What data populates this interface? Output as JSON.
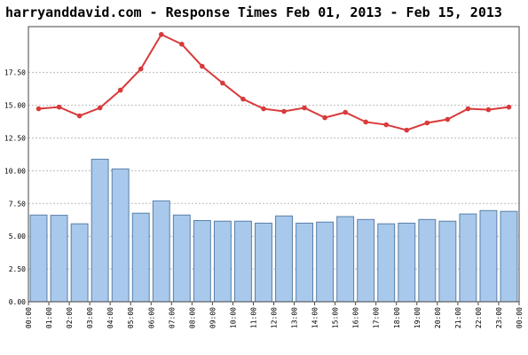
{
  "chart_data": {
    "type": "bar-line",
    "title": "harryanddavid.com - Response Times Feb 01, 2013 - Feb 15, 2013",
    "xlim": [
      0,
      24
    ],
    "xticks": [
      {
        "value": 0,
        "label": "00:00"
      },
      {
        "value": 1,
        "label": "01:00"
      },
      {
        "value": 2,
        "label": "02:00"
      },
      {
        "value": 3,
        "label": "03:00"
      },
      {
        "value": 4,
        "label": "04:00"
      },
      {
        "value": 5,
        "label": "05:00"
      },
      {
        "value": 6,
        "label": "06:00"
      },
      {
        "value": 7,
        "label": "07:00"
      },
      {
        "value": 8,
        "label": "08:00"
      },
      {
        "value": 9,
        "label": "09:00"
      },
      {
        "value": 10,
        "label": "10:00"
      },
      {
        "value": 11,
        "label": "11:00"
      },
      {
        "value": 12,
        "label": "12:00"
      },
      {
        "value": 13,
        "label": "13:00"
      },
      {
        "value": 14,
        "label": "14:00"
      },
      {
        "value": 15,
        "label": "15:00"
      },
      {
        "value": 16,
        "label": "16:00"
      },
      {
        "value": 17,
        "label": "17:00"
      },
      {
        "value": 18,
        "label": "18:00"
      },
      {
        "value": 19,
        "label": "19:00"
      },
      {
        "value": 20,
        "label": "20:00"
      },
      {
        "value": 21,
        "label": "21:00"
      },
      {
        "value": 22,
        "label": "22:00"
      },
      {
        "value": 23,
        "label": "23:00"
      },
      {
        "value": 24,
        "label": "00:00"
      }
    ],
    "ylim": [
      0,
      21
    ],
    "yticks": [
      {
        "value": 0,
        "label": "0.00"
      },
      {
        "value": 2.5,
        "label": "2.50"
      },
      {
        "value": 5,
        "label": "5.00"
      },
      {
        "value": 7.5,
        "label": "7.50"
      },
      {
        "value": 10,
        "label": "10.00"
      },
      {
        "value": 12.5,
        "label": "12.50"
      },
      {
        "value": 15,
        "label": "15.00"
      },
      {
        "value": 17.5,
        "label": "17.50"
      }
    ],
    "grid": true,
    "x": [
      0.5,
      1.5,
      2.5,
      3.5,
      4.5,
      5.5,
      6.5,
      7.5,
      8.5,
      9.5,
      10.5,
      11.5,
      12.5,
      13.5,
      14.5,
      15.5,
      16.5,
      17.5,
      18.5,
      19.5,
      20.5,
      21.5,
      22.5,
      23.5
    ],
    "series": [
      {
        "type": "bar",
        "color": "#a9c9ec",
        "values": [
          6.62,
          6.6,
          5.95,
          10.88,
          10.14,
          6.76,
          7.7,
          6.62,
          6.2,
          6.15,
          6.15,
          6.0,
          6.55,
          6.0,
          6.08,
          6.5,
          6.28,
          5.95,
          6.0,
          6.28,
          6.15,
          6.7,
          6.96,
          6.9
        ]
      },
      {
        "type": "line",
        "color": "#d93a3a",
        "values": [
          14.73,
          14.86,
          14.19,
          14.8,
          16.15,
          17.77,
          20.4,
          19.66,
          17.97,
          16.69,
          15.47,
          14.73,
          14.53,
          14.8,
          14.05,
          14.46,
          13.72,
          13.51,
          13.1,
          13.65,
          13.92,
          14.73,
          14.66,
          14.86
        ]
      }
    ]
  }
}
